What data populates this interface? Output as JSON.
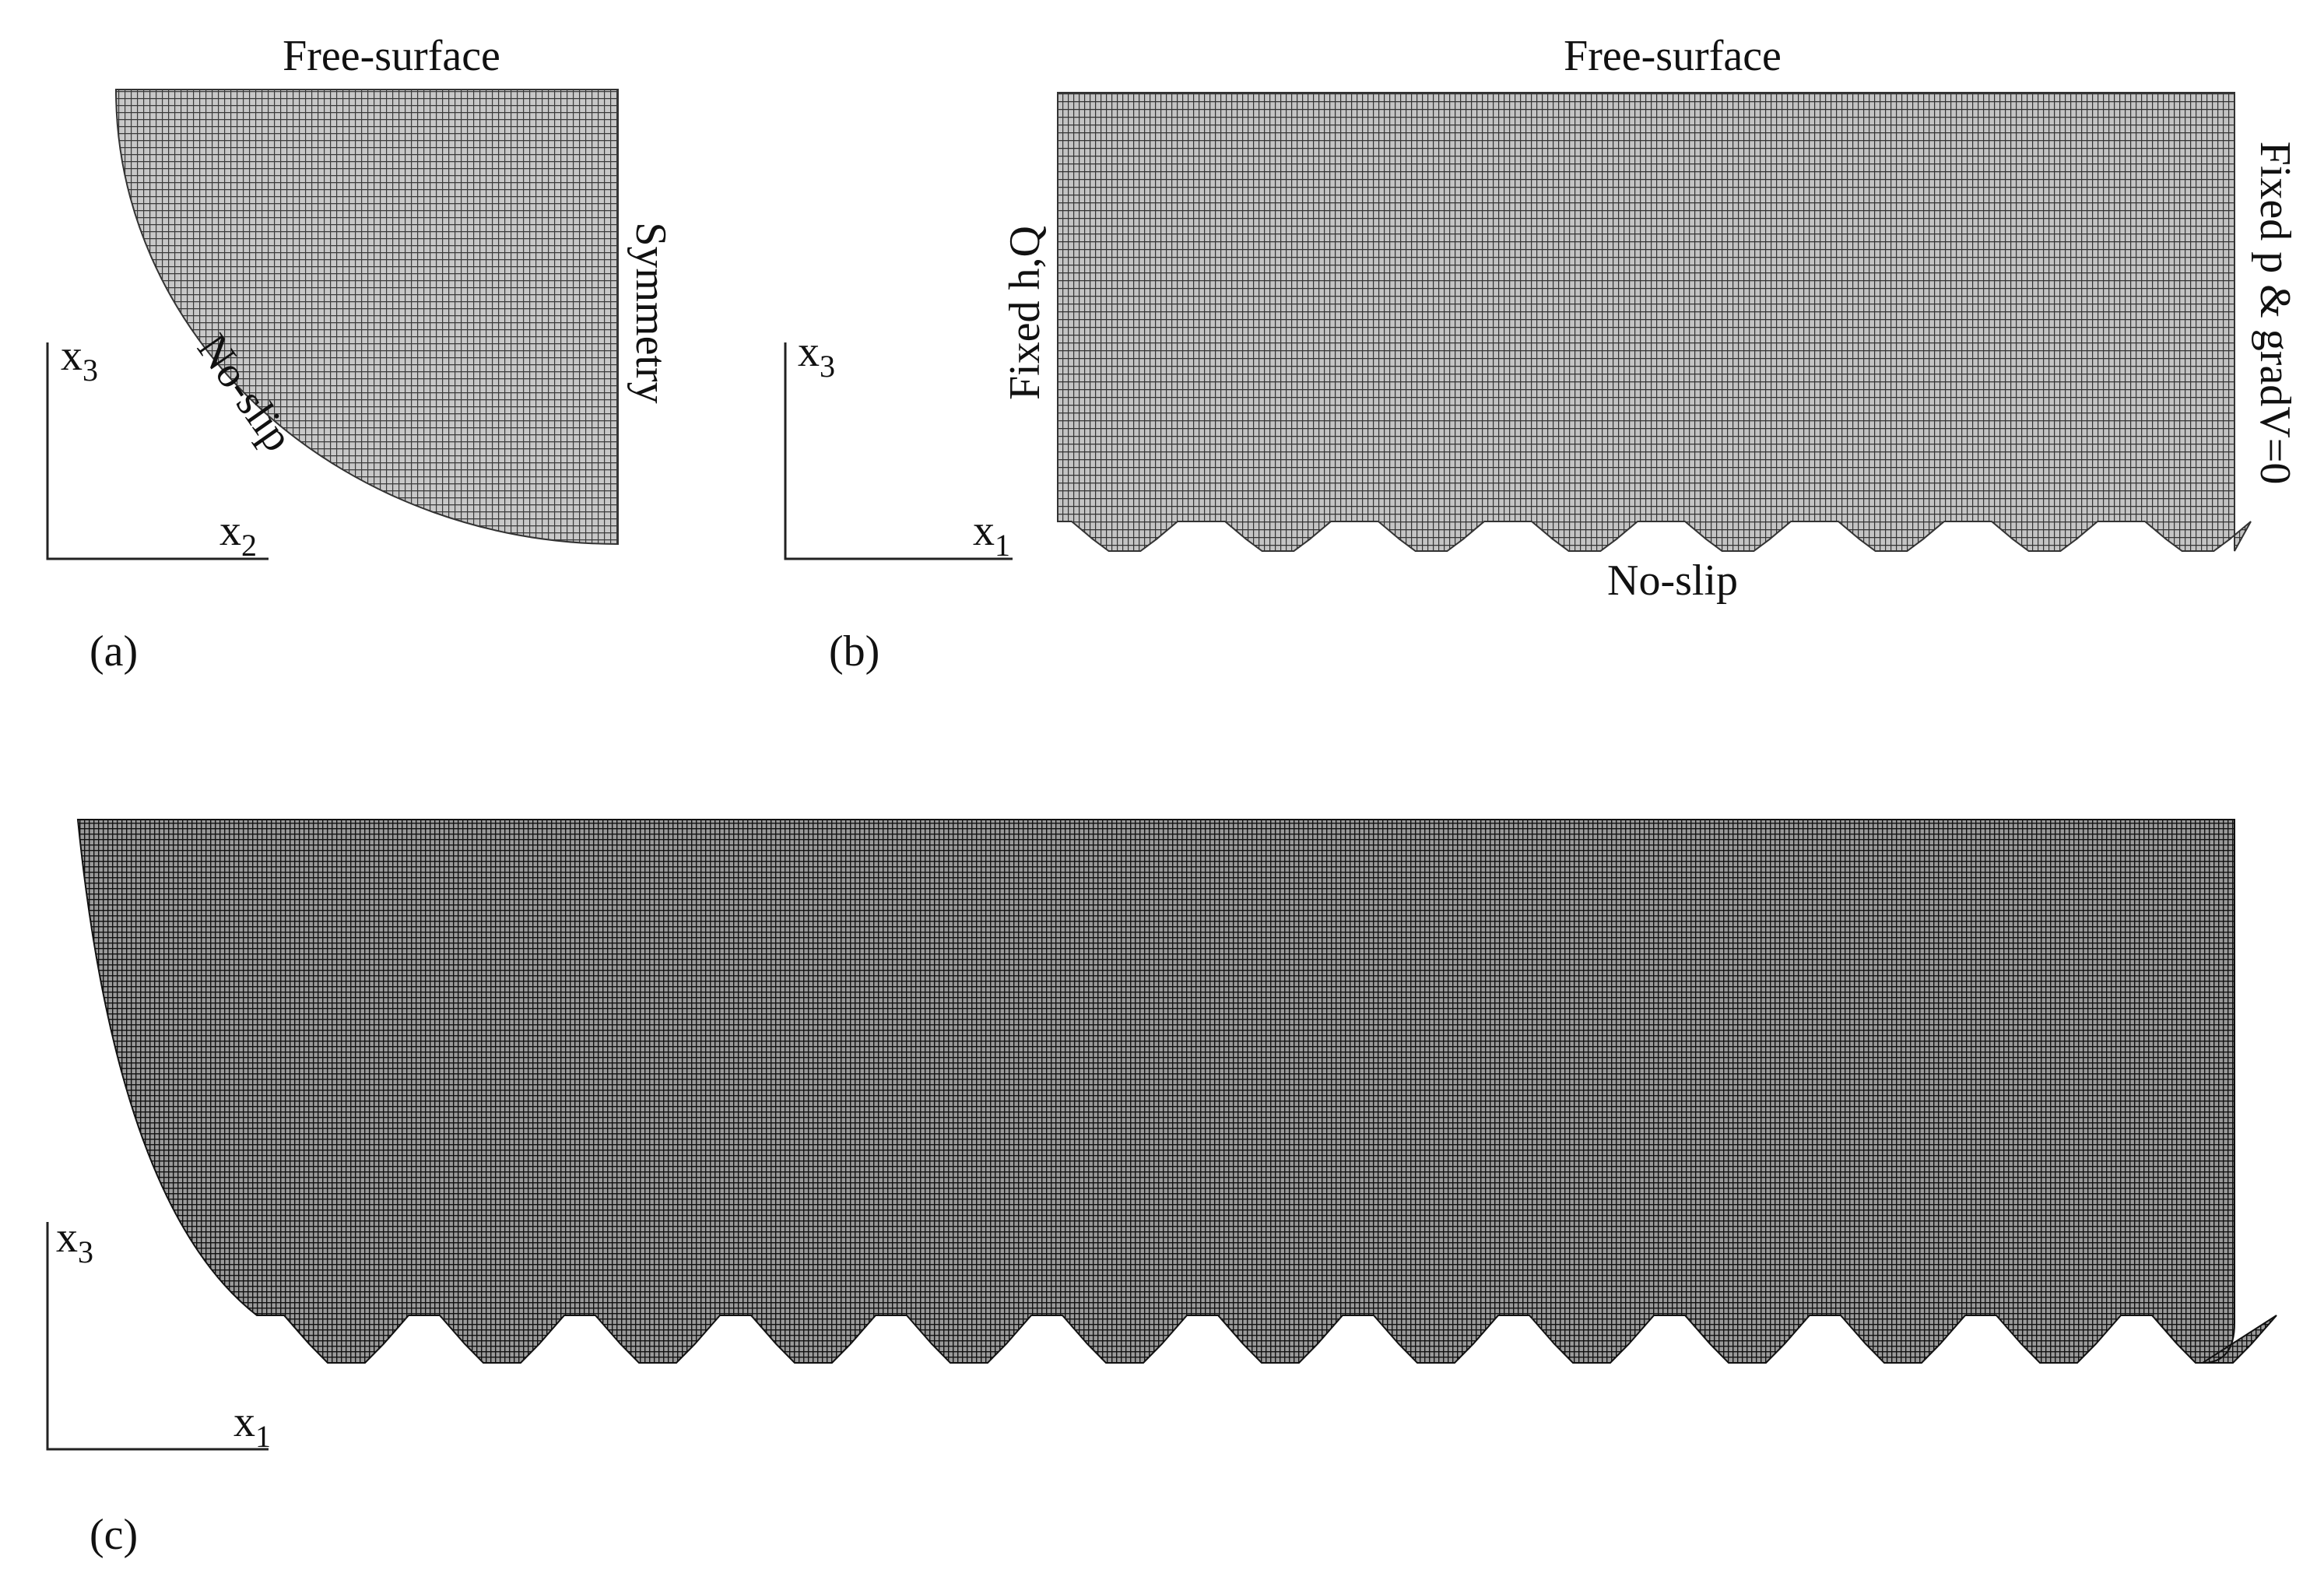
{
  "panels": [
    {
      "label": "(a)",
      "top": "Free-surface",
      "right": "Symmetry",
      "wall": "No-slip",
      "axis": {
        "vertical": {
          "base": "x",
          "sub": "3"
        },
        "horizontal": {
          "base": "x",
          "sub": "2"
        }
      }
    },
    {
      "label": "(b)",
      "top": "Free-surface",
      "left": "Fixed h,Q",
      "right": "Fixed p  & gradV=0",
      "bottom": "No-slip",
      "axis": {
        "vertical": {
          "base": "x",
          "sub": "3"
        },
        "horizontal": {
          "base": "x",
          "sub": "1"
        }
      }
    },
    {
      "label": "(c)",
      "axis": {
        "vertical": {
          "base": "x",
          "sub": "3"
        },
        "horizontal": {
          "base": "x",
          "sub": "1"
        }
      }
    }
  ]
}
